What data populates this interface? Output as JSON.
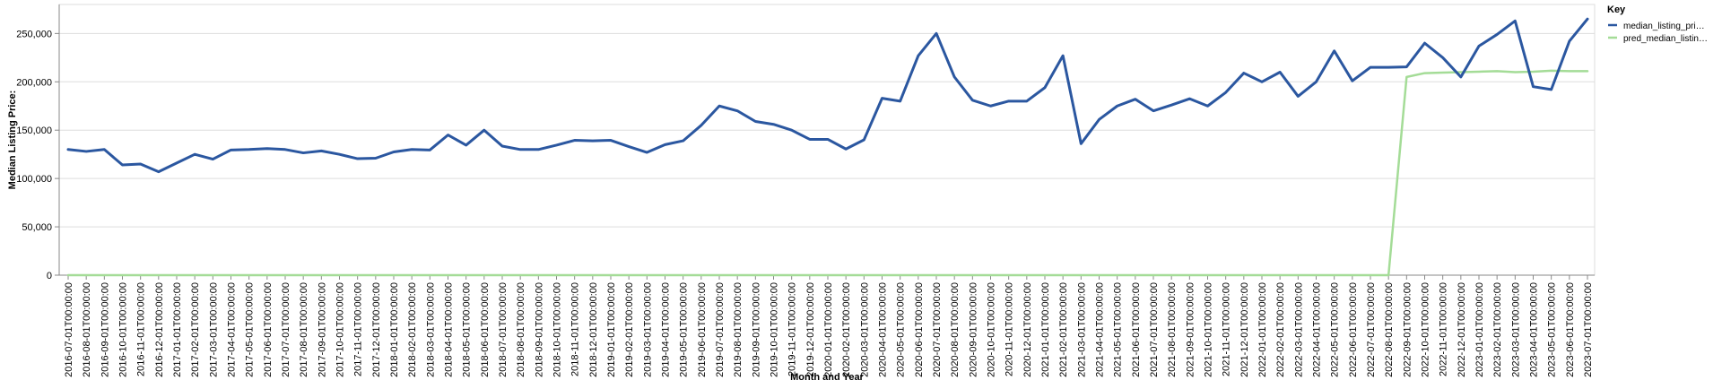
{
  "chart_data": {
    "type": "line",
    "xlabel": "Month and Year",
    "ylabel": "Median Listing Price:",
    "ylim": [
      0,
      280000
    ],
    "y_ticks": [
      "0",
      "50,000",
      "100,000",
      "150,000",
      "200,000",
      "250,000"
    ],
    "y_tick_values": [
      0,
      50000,
      100000,
      150000,
      200000,
      250000
    ],
    "grid": true,
    "legend": {
      "title": "Key",
      "placement": "top-right"
    },
    "x": [
      "2016-07-01T00:00:00",
      "2016-08-01T00:00:00",
      "2016-09-01T00:00:00",
      "2016-10-01T00:00:00",
      "2016-11-01T00:00:00",
      "2016-12-01T00:00:00",
      "2017-01-01T00:00:00",
      "2017-02-01T00:00:00",
      "2017-03-01T00:00:00",
      "2017-04-01T00:00:00",
      "2017-05-01T00:00:00",
      "2017-06-01T00:00:00",
      "2017-07-01T00:00:00",
      "2017-08-01T00:00:00",
      "2017-09-01T00:00:00",
      "2017-10-01T00:00:00",
      "2017-11-01T00:00:00",
      "2017-12-01T00:00:00",
      "2018-01-01T00:00:00",
      "2018-02-01T00:00:00",
      "2018-03-01T00:00:00",
      "2018-04-01T00:00:00",
      "2018-05-01T00:00:00",
      "2018-06-01T00:00:00",
      "2018-07-01T00:00:00",
      "2018-08-01T00:00:00",
      "2018-09-01T00:00:00",
      "2018-10-01T00:00:00",
      "2018-11-01T00:00:00",
      "2018-12-01T00:00:00",
      "2019-01-01T00:00:00",
      "2019-02-01T00:00:00",
      "2019-03-01T00:00:00",
      "2019-04-01T00:00:00",
      "2019-05-01T00:00:00",
      "2019-06-01T00:00:00",
      "2019-07-01T00:00:00",
      "2019-08-01T00:00:00",
      "2019-09-01T00:00:00",
      "2019-10-01T00:00:00",
      "2019-11-01T00:00:00",
      "2019-12-01T00:00:00",
      "2020-01-01T00:00:00",
      "2020-02-01T00:00:00",
      "2020-03-01T00:00:00",
      "2020-04-01T00:00:00",
      "2020-05-01T00:00:00",
      "2020-06-01T00:00:00",
      "2020-07-01T00:00:00",
      "2020-08-01T00:00:00",
      "2020-09-01T00:00:00",
      "2020-10-01T00:00:00",
      "2020-11-01T00:00:00",
      "2020-12-01T00:00:00",
      "2021-01-01T00:00:00",
      "2021-02-01T00:00:00",
      "2021-03-01T00:00:00",
      "2021-04-01T00:00:00",
      "2021-05-01T00:00:00",
      "2021-06-01T00:00:00",
      "2021-07-01T00:00:00",
      "2021-08-01T00:00:00",
      "2021-09-01T00:00:00",
      "2021-10-01T00:00:00",
      "2021-11-01T00:00:00",
      "2021-12-01T00:00:00",
      "2022-01-01T00:00:00",
      "2022-02-01T00:00:00",
      "2022-03-01T00:00:00",
      "2022-04-01T00:00:00",
      "2022-05-01T00:00:00",
      "2022-06-01T00:00:00",
      "2022-07-01T00:00:00",
      "2022-08-01T00:00:00",
      "2022-09-01T00:00:00",
      "2022-10-01T00:00:00",
      "2022-11-01T00:00:00",
      "2022-12-01T00:00:00",
      "2023-01-01T00:00:00",
      "2023-02-01T00:00:00",
      "2023-03-01T00:00:00",
      "2023-04-01T00:00:00",
      "2023-05-01T00:00:00",
      "2023-06-01T00:00:00",
      "2023-07-01T00:00:00"
    ],
    "series": [
      {
        "name": "median_listing_pri…",
        "color": "#2b57a0",
        "values": [
          130000,
          128000,
          130000,
          114000,
          115000,
          107000,
          116000,
          125000,
          120000,
          129500,
          130000,
          131000,
          130000,
          126500,
          128500,
          125000,
          120500,
          121000,
          127500,
          130000,
          129500,
          145000,
          134500,
          150000,
          133500,
          130000,
          130000,
          134500,
          139500,
          139000,
          139500,
          133000,
          127000,
          135000,
          139000,
          155000,
          175000,
          170000,
          159000,
          156000,
          150000,
          140500,
          140500,
          130500,
          140000,
          183000,
          180000,
          227000,
          250000,
          205000,
          181000,
          175000,
          180000,
          180000,
          194000,
          227000,
          136000,
          161000,
          175000,
          182000,
          170000,
          176000,
          182500,
          175000,
          189000,
          209000,
          200000,
          210000,
          185000,
          200000,
          232000,
          201000,
          215000,
          215000,
          215500,
          240000,
          225000,
          205000,
          237000,
          249000,
          263000,
          195000,
          192000,
          242000,
          265000
        ]
      },
      {
        "name": "pred_median_listin…",
        "color": "#a4dc97",
        "values": [
          0,
          0,
          0,
          0,
          0,
          0,
          0,
          0,
          0,
          0,
          0,
          0,
          0,
          0,
          0,
          0,
          0,
          0,
          0,
          0,
          0,
          0,
          0,
          0,
          0,
          0,
          0,
          0,
          0,
          0,
          0,
          0,
          0,
          0,
          0,
          0,
          0,
          0,
          0,
          0,
          0,
          0,
          0,
          0,
          0,
          0,
          0,
          0,
          0,
          0,
          0,
          0,
          0,
          0,
          0,
          0,
          0,
          0,
          0,
          0,
          0,
          0,
          0,
          0,
          0,
          0,
          0,
          0,
          0,
          0,
          0,
          0,
          0,
          0,
          205000,
          209000,
          209500,
          210000,
          210500,
          211000,
          210000,
          210500,
          211500,
          211000,
          211000
        ]
      }
    ]
  }
}
